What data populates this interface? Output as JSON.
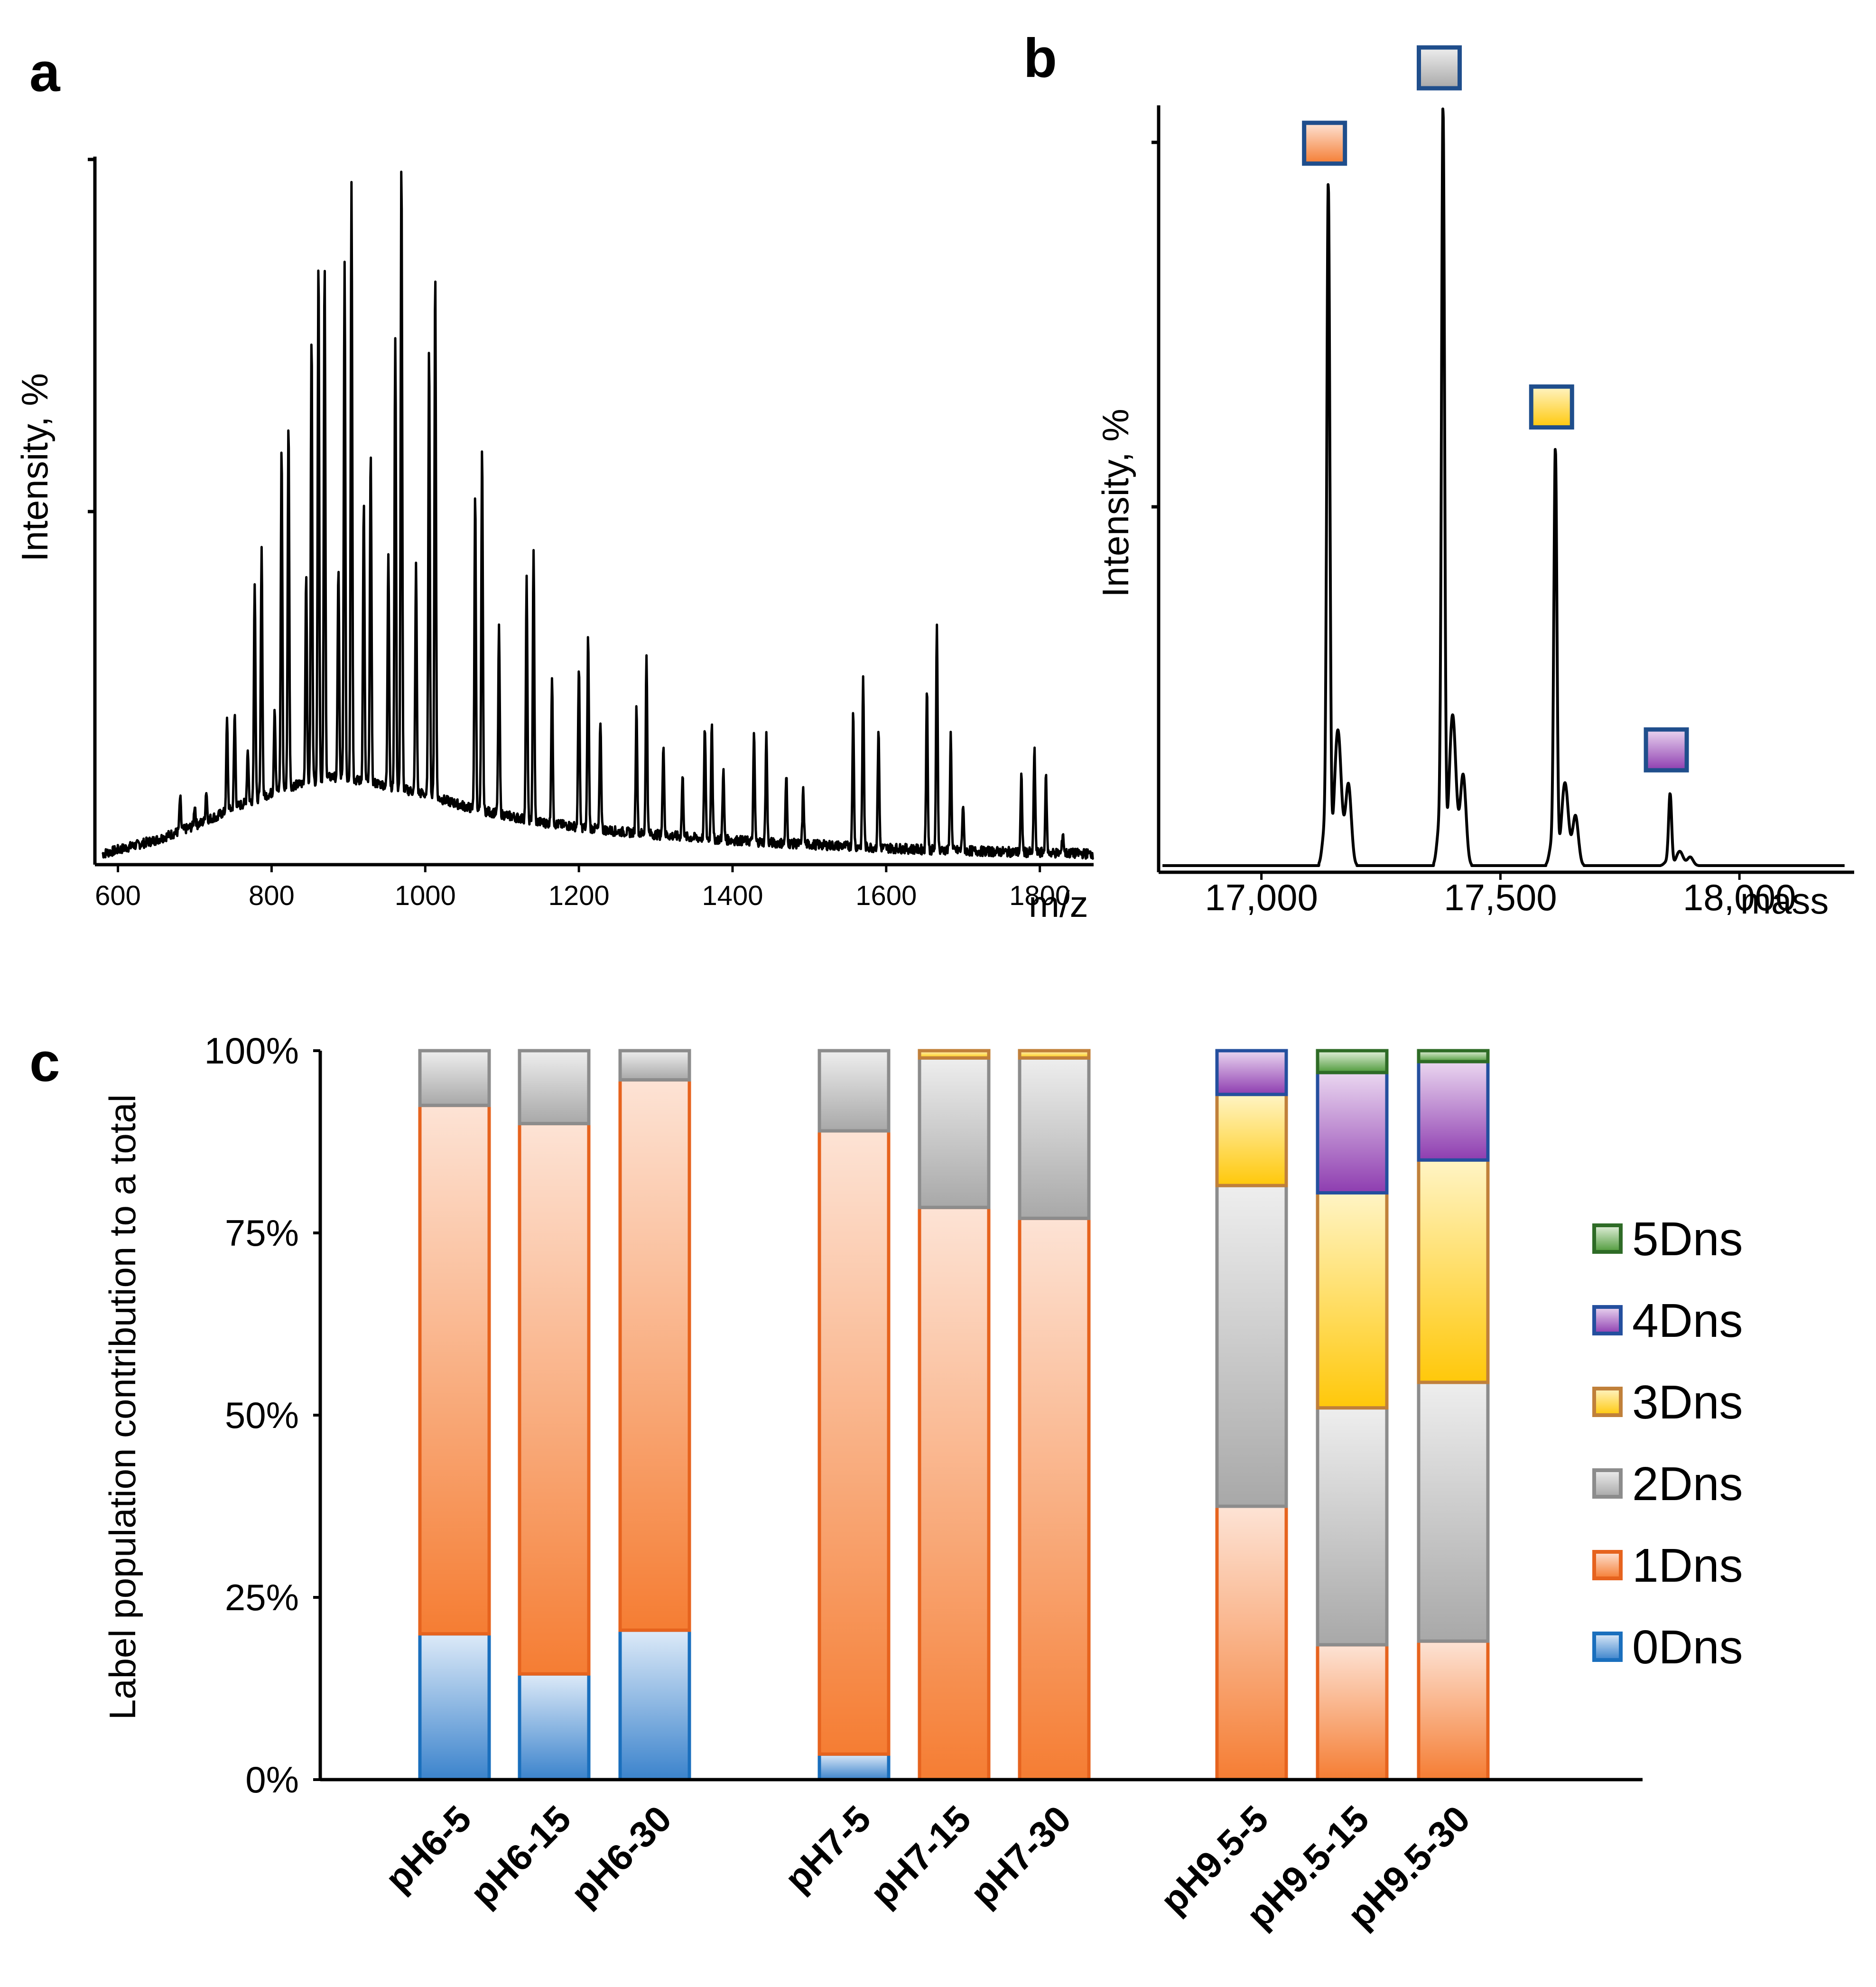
{
  "panels": {
    "a": "a",
    "b": "b",
    "c": "c"
  },
  "chart_data": [
    {
      "type": "line",
      "panel": "a",
      "title": "",
      "xlabel": "m/z",
      "ylabel": "Intensity, %",
      "xlim": [
        570,
        1870
      ],
      "ylim": [
        0,
        100
      ],
      "xticks": [
        600,
        800,
        1000,
        1200,
        1400,
        1600,
        1800
      ],
      "baseline": [
        [
          580,
          1
        ],
        [
          650,
          3
        ],
        [
          700,
          5
        ],
        [
          760,
          8
        ],
        [
          820,
          10.5
        ],
        [
          880,
          12
        ],
        [
          940,
          11
        ],
        [
          1000,
          9.5
        ],
        [
          1060,
          7.5
        ],
        [
          1150,
          5.5
        ],
        [
          1250,
          4.2
        ],
        [
          1350,
          3.3
        ],
        [
          1450,
          2.6
        ],
        [
          1550,
          2.1
        ],
        [
          1650,
          1.6
        ],
        [
          1750,
          1.3
        ],
        [
          1870,
          1
        ]
      ],
      "peaks": [
        [
          681,
          9
        ],
        [
          700,
          8
        ],
        [
          715,
          10
        ],
        [
          729,
          6
        ],
        [
          742,
          20
        ],
        [
          752,
          21
        ],
        [
          769,
          16
        ],
        [
          778,
          40
        ],
        [
          787,
          45
        ],
        [
          804,
          22
        ],
        [
          813,
          59
        ],
        [
          822,
          63
        ],
        [
          845,
          41
        ],
        [
          852,
          75
        ],
        [
          861,
          86
        ],
        [
          869,
          85
        ],
        [
          887,
          42
        ],
        [
          895,
          85
        ],
        [
          904,
          97
        ],
        [
          920,
          51
        ],
        [
          929,
          59
        ],
        [
          952,
          44
        ],
        [
          961,
          75
        ],
        [
          969,
          100
        ],
        [
          988,
          42
        ],
        [
          1005,
          73
        ],
        [
          1013,
          84
        ],
        [
          1065,
          52
        ],
        [
          1074,
          59
        ],
        [
          1096,
          33
        ],
        [
          1132,
          40
        ],
        [
          1141,
          44
        ],
        [
          1165,
          26
        ],
        [
          1200,
          28
        ],
        [
          1212,
          32
        ],
        [
          1228,
          20
        ],
        [
          1275,
          22
        ],
        [
          1288,
          29
        ],
        [
          1310,
          17
        ],
        [
          1335,
          12
        ],
        [
          1364,
          19
        ],
        [
          1373,
          20
        ],
        [
          1388,
          13
        ],
        [
          1428,
          18
        ],
        [
          1444,
          18
        ],
        [
          1470,
          12
        ],
        [
          1492,
          10
        ],
        [
          1557,
          21
        ],
        [
          1570,
          26
        ],
        [
          1590,
          19
        ],
        [
          1653,
          25
        ],
        [
          1666,
          34
        ],
        [
          1684,
          18
        ],
        [
          1700,
          8
        ],
        [
          1776,
          12
        ],
        [
          1793,
          16
        ],
        [
          1808,
          12
        ],
        [
          1830,
          4
        ]
      ]
    },
    {
      "type": "line",
      "panel": "b",
      "title": "",
      "xlabel": "mass",
      "ylabel": "Intensity, %",
      "xlim": [
        16785,
        18240
      ],
      "ylim": [
        0,
        105
      ],
      "xticks": [
        17000,
        17500,
        18000
      ],
      "xtick_labels": [
        "17,000",
        "17,500",
        "18,000"
      ],
      "peaks": [
        {
          "mass": 17140,
          "intensity": 90,
          "label": "1Dns"
        },
        {
          "mass": 17380,
          "intensity": 100,
          "label": "2Dns"
        },
        {
          "mass": 17615,
          "intensity": 55,
          "label": "3Dns"
        },
        {
          "mass": 17855,
          "intensity": 9.5,
          "label": "4Dns"
        }
      ]
    },
    {
      "type": "bar",
      "stacked": true,
      "panel": "c",
      "title": "",
      "xlabel": "",
      "ylabel": "Label population contribution to a total",
      "ylim": [
        0,
        100
      ],
      "yticks": [
        "0%",
        "25%",
        "50%",
        "75%",
        "100%"
      ],
      "categories": [
        "pH6-5",
        "pH6-15",
        "pH6-30",
        "pH7-5",
        "pH7-15",
        "pH7-30",
        "pH9.5-5",
        "pH9.5-15",
        "pH9.5-30"
      ],
      "legend_position": "right",
      "series": [
        {
          "name": "0Dns",
          "values": [
            20,
            14.5,
            20.5,
            3.5,
            0,
            0,
            0,
            0,
            0
          ]
        },
        {
          "name": "1Dns",
          "values": [
            72.5,
            75.5,
            75.5,
            85.5,
            78.5,
            77,
            37.5,
            18.5,
            19
          ]
        },
        {
          "name": "2Dns",
          "values": [
            7.5,
            10,
            4,
            11,
            20.5,
            22,
            44,
            32.5,
            35.5
          ]
        },
        {
          "name": "3Dns",
          "values": [
            0,
            0,
            0,
            0,
            1,
            1,
            12.5,
            29.5,
            30.5
          ]
        },
        {
          "name": "4Dns",
          "values": [
            0,
            0,
            0,
            0,
            0,
            0,
            6,
            16.5,
            13.5
          ]
        },
        {
          "name": "5Dns",
          "values": [
            0,
            0,
            0,
            0,
            0,
            0,
            0,
            3,
            1.5
          ]
        }
      ]
    }
  ],
  "colors": {
    "0Dns": {
      "light": "#ddeaf8",
      "dark": "#3b83cc",
      "border": "#1a6fbd"
    },
    "1Dns": {
      "light": "#fde3d5",
      "dark": "#f57d33",
      "border": "#e6631e"
    },
    "2Dns": {
      "light": "#eeeeee",
      "dark": "#a8a8a8",
      "border": "#8c8c8c"
    },
    "3Dns": {
      "light": "#fff4c4",
      "dark": "#ffc80a",
      "border": "#c0803a"
    },
    "4Dns": {
      "light": "#ead6f0",
      "dark": "#8e3db0",
      "border": "#244f9e"
    },
    "5Dns": {
      "light": "#e3f0dc",
      "dark": "#4e9a3a",
      "border": "#2e6b26"
    },
    "marker_border": "#1f4e8c"
  }
}
